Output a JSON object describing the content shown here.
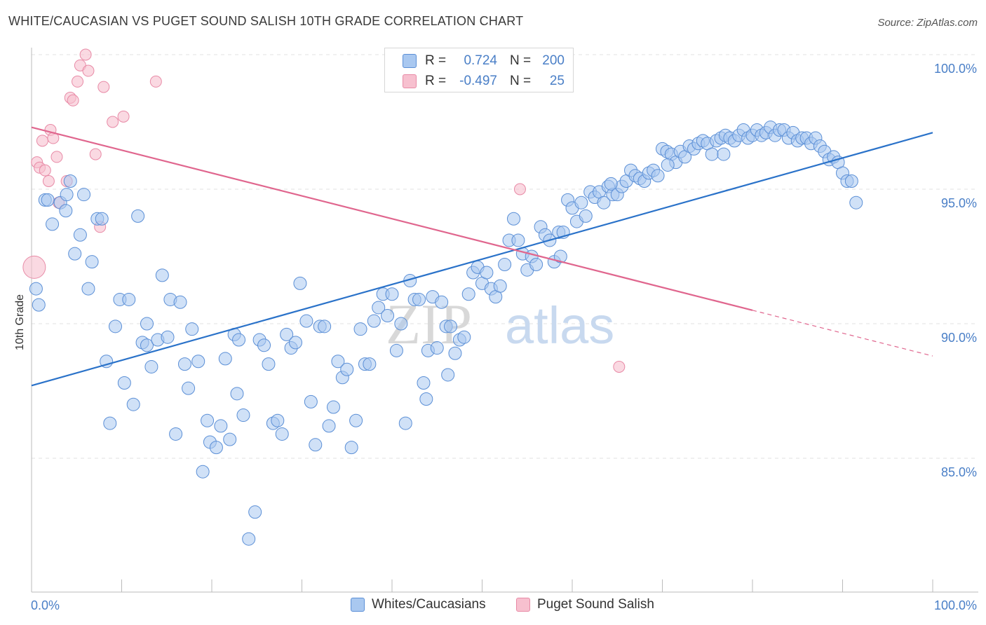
{
  "title": "WHITE/CAUCASIAN VS PUGET SOUND SALISH 10TH GRADE CORRELATION CHART",
  "source": "Source: ZipAtlas.com",
  "watermark": {
    "zip": "ZIP",
    "atlas": "atlas"
  },
  "colors": {
    "blue_fill": "#a9c8f0",
    "blue_stroke": "#5b8fd6",
    "blue_line": "#2a72c9",
    "pink_fill": "#f7c0cf",
    "pink_stroke": "#e88aa6",
    "pink_line": "#e0668e",
    "axis_label": "#4a7fc7",
    "grid": "#e2e2e2"
  },
  "legend": {
    "rows": [
      {
        "r_label": "R =",
        "r_value": "0.724",
        "n_label": "N =",
        "n_value": "200",
        "series": "blue"
      },
      {
        "r_label": "R =",
        "r_value": "-0.497",
        "n_label": "N =",
        "n_value": "25",
        "series": "pink"
      }
    ]
  },
  "chart_data": {
    "type": "scatter",
    "title": "WHITE/CAUCASIAN VS PUGET SOUND SALISH 10TH GRADE CORRELATION CHART",
    "xlabel": "",
    "ylabel": "10th Grade",
    "xlim": [
      0,
      100
    ],
    "ylim": [
      80.5,
      100.5
    ],
    "x_tick_labels": [
      "0.0%",
      "100.0%"
    ],
    "y_ticks": [
      85,
      90,
      95,
      100
    ],
    "y_tick_labels": [
      "85.0%",
      "90.0%",
      "95.0%",
      "100.0%"
    ],
    "grid": true,
    "legend_position": "top-center",
    "series": [
      {
        "name": "Whites/Caucasians",
        "color": "blue",
        "trend": {
          "x": [
            0,
            100
          ],
          "y": [
            87.7,
            97.1
          ]
        },
        "points": [
          [
            0.5,
            91.3
          ],
          [
            0.8,
            90.7
          ],
          [
            1.5,
            94.6
          ],
          [
            1.8,
            94.6
          ],
          [
            2.3,
            93.7
          ],
          [
            3.2,
            94.5
          ],
          [
            3.8,
            94.2
          ],
          [
            3.9,
            94.8
          ],
          [
            4.3,
            95.3
          ],
          [
            4.8,
            92.6
          ],
          [
            5.4,
            93.3
          ],
          [
            5.8,
            94.8
          ],
          [
            6.3,
            91.3
          ],
          [
            6.7,
            92.3
          ],
          [
            7.3,
            93.9
          ],
          [
            7.8,
            93.9
          ],
          [
            8.3,
            88.6
          ],
          [
            8.7,
            86.3
          ],
          [
            9.3,
            89.9
          ],
          [
            9.8,
            90.9
          ],
          [
            10.3,
            87.8
          ],
          [
            10.8,
            90.9
          ],
          [
            11.3,
            87.0
          ],
          [
            11.8,
            94.0
          ],
          [
            12.3,
            89.3
          ],
          [
            12.8,
            89.2
          ],
          [
            13.3,
            88.4
          ],
          [
            14.0,
            89.4
          ],
          [
            14.5,
            91.8
          ],
          [
            15.1,
            89.5
          ],
          [
            15.4,
            90.9
          ],
          [
            16.0,
            85.9
          ],
          [
            16.5,
            90.8
          ],
          [
            17.0,
            88.5
          ],
          [
            17.4,
            87.6
          ],
          [
            17.8,
            89.8
          ],
          [
            18.5,
            88.6
          ],
          [
            19.0,
            84.5
          ],
          [
            19.5,
            86.4
          ],
          [
            19.8,
            85.6
          ],
          [
            20.5,
            85.4
          ],
          [
            21.0,
            86.2
          ],
          [
            21.5,
            88.7
          ],
          [
            22.0,
            85.7
          ],
          [
            22.5,
            89.6
          ],
          [
            23.0,
            89.4
          ],
          [
            23.5,
            86.6
          ],
          [
            24.1,
            82.0
          ],
          [
            24.8,
            83.0
          ],
          [
            25.3,
            89.4
          ],
          [
            25.8,
            89.2
          ],
          [
            26.3,
            88.5
          ],
          [
            26.8,
            86.3
          ],
          [
            27.3,
            86.4
          ],
          [
            27.8,
            85.9
          ],
          [
            28.3,
            89.6
          ],
          [
            28.8,
            89.1
          ],
          [
            29.3,
            89.3
          ],
          [
            29.8,
            91.5
          ],
          [
            30.5,
            90.1
          ],
          [
            31.0,
            87.1
          ],
          [
            31.5,
            85.5
          ],
          [
            32.0,
            89.9
          ],
          [
            32.5,
            89.9
          ],
          [
            33.0,
            86.2
          ],
          [
            33.5,
            86.9
          ],
          [
            34.0,
            88.6
          ],
          [
            34.5,
            88.0
          ],
          [
            35.0,
            88.3
          ],
          [
            35.5,
            85.4
          ],
          [
            36.0,
            86.4
          ],
          [
            36.5,
            89.8
          ],
          [
            37.0,
            88.5
          ],
          [
            37.5,
            88.5
          ],
          [
            38.0,
            90.1
          ],
          [
            38.5,
            90.6
          ],
          [
            39.0,
            91.1
          ],
          [
            39.5,
            90.3
          ],
          [
            40.0,
            91.1
          ],
          [
            40.5,
            89.0
          ],
          [
            41.0,
            90.0
          ],
          [
            41.5,
            86.3
          ],
          [
            42.0,
            91.6
          ],
          [
            42.5,
            90.9
          ],
          [
            43.0,
            90.9
          ],
          [
            43.5,
            87.8
          ],
          [
            44.0,
            89.0
          ],
          [
            44.5,
            91.0
          ],
          [
            45.0,
            89.1
          ],
          [
            45.5,
            90.8
          ],
          [
            46.0,
            89.9
          ],
          [
            46.5,
            89.9
          ],
          [
            47.0,
            88.9
          ],
          [
            47.5,
            89.4
          ],
          [
            48.0,
            89.5
          ],
          [
            48.5,
            91.1
          ],
          [
            49.0,
            91.9
          ],
          [
            49.5,
            92.1
          ],
          [
            50.0,
            91.5
          ],
          [
            50.5,
            91.9
          ],
          [
            51.0,
            91.3
          ],
          [
            51.5,
            91.0
          ],
          [
            52.0,
            91.4
          ],
          [
            52.5,
            92.2
          ],
          [
            53.0,
            93.1
          ],
          [
            53.5,
            93.9
          ],
          [
            54.0,
            93.1
          ],
          [
            54.5,
            92.6
          ],
          [
            55.0,
            92.0
          ],
          [
            55.5,
            92.5
          ],
          [
            56.0,
            92.2
          ],
          [
            56.5,
            93.6
          ],
          [
            57.0,
            93.3
          ],
          [
            57.5,
            93.1
          ],
          [
            58.0,
            92.3
          ],
          [
            58.5,
            93.4
          ],
          [
            59.0,
            93.4
          ],
          [
            59.5,
            94.6
          ],
          [
            60.0,
            94.3
          ],
          [
            60.5,
            93.8
          ],
          [
            61.0,
            94.5
          ],
          [
            61.5,
            94.0
          ],
          [
            62.0,
            94.9
          ],
          [
            62.5,
            94.7
          ],
          [
            63.0,
            94.9
          ],
          [
            63.5,
            94.5
          ],
          [
            64.0,
            95.1
          ],
          [
            64.5,
            94.8
          ],
          [
            65.0,
            94.8
          ],
          [
            65.5,
            95.1
          ],
          [
            66.0,
            95.3
          ],
          [
            66.5,
            95.7
          ],
          [
            67.0,
            95.5
          ],
          [
            67.5,
            95.4
          ],
          [
            68.0,
            95.3
          ],
          [
            68.5,
            95.6
          ],
          [
            69.0,
            95.7
          ],
          [
            69.5,
            95.5
          ],
          [
            70.0,
            96.5
          ],
          [
            70.5,
            96.4
          ],
          [
            71.0,
            96.3
          ],
          [
            71.5,
            96.0
          ],
          [
            72.0,
            96.4
          ],
          [
            72.5,
            96.2
          ],
          [
            73.0,
            96.6
          ],
          [
            73.5,
            96.5
          ],
          [
            74.0,
            96.7
          ],
          [
            74.5,
            96.8
          ],
          [
            75.0,
            96.7
          ],
          [
            75.5,
            96.3
          ],
          [
            76.0,
            96.8
          ],
          [
            76.5,
            96.9
          ],
          [
            77.0,
            97.0
          ],
          [
            77.5,
            96.9
          ],
          [
            78.0,
            96.8
          ],
          [
            78.5,
            97.0
          ],
          [
            79.0,
            97.2
          ],
          [
            79.5,
            96.9
          ],
          [
            80.0,
            97.0
          ],
          [
            80.5,
            97.2
          ],
          [
            81.0,
            97.0
          ],
          [
            81.5,
            97.1
          ],
          [
            82.0,
            97.3
          ],
          [
            82.5,
            97.0
          ],
          [
            83.0,
            97.2
          ],
          [
            83.5,
            97.2
          ],
          [
            84.0,
            96.9
          ],
          [
            84.5,
            97.1
          ],
          [
            85.0,
            96.8
          ],
          [
            85.5,
            96.9
          ],
          [
            86.0,
            96.9
          ],
          [
            86.5,
            96.7
          ],
          [
            87.0,
            96.9
          ],
          [
            87.5,
            96.6
          ],
          [
            88.0,
            96.4
          ],
          [
            88.5,
            96.1
          ],
          [
            89.0,
            96.2
          ],
          [
            89.5,
            96.0
          ],
          [
            90.0,
            95.6
          ],
          [
            90.5,
            95.3
          ],
          [
            91.0,
            95.3
          ],
          [
            91.5,
            94.5
          ],
          [
            43.8,
            87.2
          ],
          [
            46.2,
            88.1
          ],
          [
            22.8,
            87.4
          ],
          [
            12.8,
            90.0
          ],
          [
            58.7,
            92.5
          ],
          [
            64.3,
            95.2
          ],
          [
            70.6,
            95.9
          ],
          [
            76.8,
            96.3
          ]
        ]
      },
      {
        "name": "Puget Sound Salish",
        "color": "pink",
        "trend": {
          "x": [
            0,
            80
          ],
          "y": [
            97.3,
            90.5
          ]
        },
        "trend_dashed_to": {
          "x": 100,
          "y": 88.8
        },
        "points": [
          [
            0.3,
            92.1
          ],
          [
            0.6,
            96.0
          ],
          [
            0.9,
            95.8
          ],
          [
            1.2,
            96.8
          ],
          [
            1.5,
            95.7
          ],
          [
            1.9,
            95.3
          ],
          [
            2.1,
            97.2
          ],
          [
            2.4,
            96.9
          ],
          [
            2.8,
            96.2
          ],
          [
            3.0,
            94.5
          ],
          [
            3.9,
            95.3
          ],
          [
            4.3,
            98.4
          ],
          [
            4.6,
            98.3
          ],
          [
            5.1,
            99.0
          ],
          [
            5.4,
            99.6
          ],
          [
            6.0,
            100.0
          ],
          [
            6.3,
            99.4
          ],
          [
            7.1,
            96.3
          ],
          [
            7.6,
            93.6
          ],
          [
            8.0,
            98.8
          ],
          [
            9.0,
            97.5
          ],
          [
            10.2,
            97.7
          ],
          [
            13.8,
            99.0
          ],
          [
            54.2,
            95.0
          ],
          [
            65.2,
            88.4
          ]
        ]
      }
    ]
  },
  "bottom_legend": [
    {
      "label": "Whites/Caucasians",
      "series": "blue"
    },
    {
      "label": "Puget Sound Salish",
      "series": "pink"
    }
  ]
}
